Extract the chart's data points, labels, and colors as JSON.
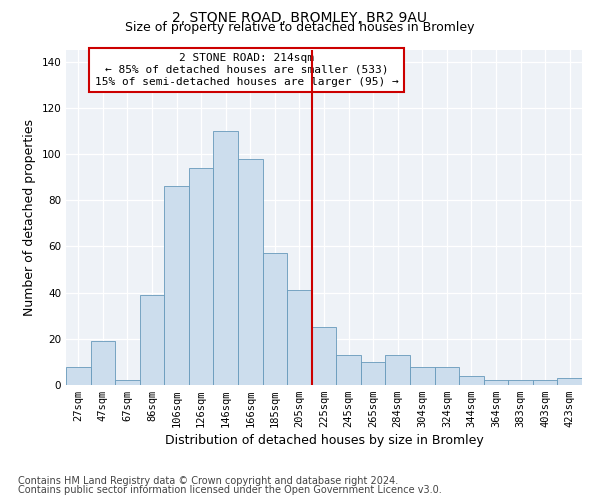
{
  "title": "2, STONE ROAD, BROMLEY, BR2 9AU",
  "subtitle": "Size of property relative to detached houses in Bromley",
  "xlabel": "Distribution of detached houses by size in Bromley",
  "ylabel": "Number of detached properties",
  "footnote1": "Contains HM Land Registry data © Crown copyright and database right 2024.",
  "footnote2": "Contains public sector information licensed under the Open Government Licence v3.0.",
  "annotation_line1": "2 STONE ROAD: 214sqm",
  "annotation_line2": "← 85% of detached houses are smaller (533)",
  "annotation_line3": "15% of semi-detached houses are larger (95) →",
  "bar_color": "#ccdded",
  "bar_edge_color": "#6699bb",
  "annotation_box_color": "#cc0000",
  "vertical_line_color": "#cc0000",
  "categories": [
    "27sqm",
    "47sqm",
    "67sqm",
    "86sqm",
    "106sqm",
    "126sqm",
    "146sqm",
    "166sqm",
    "185sqm",
    "205sqm",
    "225sqm",
    "245sqm",
    "265sqm",
    "284sqm",
    "304sqm",
    "324sqm",
    "344sqm",
    "364sqm",
    "383sqm",
    "403sqm",
    "423sqm"
  ],
  "values": [
    8,
    19,
    2,
    39,
    86,
    94,
    110,
    98,
    57,
    41,
    25,
    13,
    10,
    13,
    8,
    8,
    4,
    2,
    2,
    2,
    3
  ],
  "vline_x": 9.5,
  "ylim": [
    0,
    145
  ],
  "yticks": [
    0,
    20,
    40,
    60,
    80,
    100,
    120,
    140
  ],
  "title_fontsize": 10,
  "subtitle_fontsize": 9,
  "axis_label_fontsize": 9,
  "tick_fontsize": 7.5,
  "annotation_fontsize": 8,
  "footnote_fontsize": 7
}
